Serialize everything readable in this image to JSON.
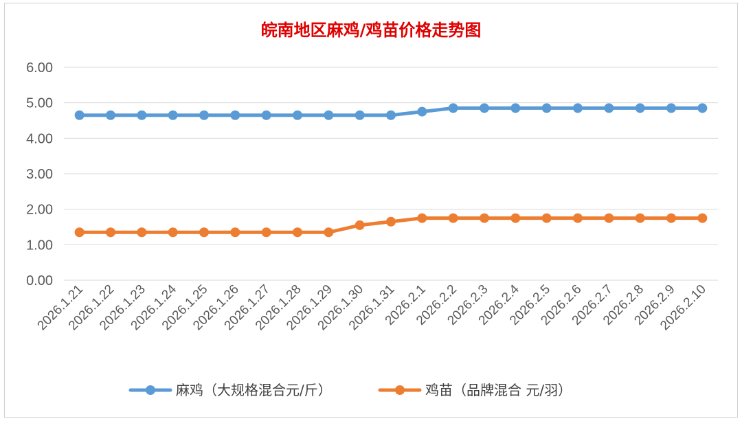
{
  "chart_data": {
    "type": "line",
    "title": "皖南地区麻鸡/鸡苗价格走势图",
    "categories": [
      "2026.1.21",
      "2026.1.22",
      "2026.1.23",
      "2026.1.24",
      "2026.1.25",
      "2026.1.26",
      "2026.1.27",
      "2026.1.28",
      "2026.1.29",
      "2026.1.30",
      "2026.1.31",
      "2026.2.1",
      "2026.2.2",
      "2026.2.3",
      "2026.2.4",
      "2026.2.5",
      "2026.2.6",
      "2026.2.7",
      "2026.2.8",
      "2026.2.9",
      "2026.2.10"
    ],
    "yticks": [
      "0.00",
      "1.00",
      "2.00",
      "3.00",
      "4.00",
      "5.00",
      "6.00"
    ],
    "ylim": [
      0,
      6
    ],
    "grid": true,
    "legend_position": "bottom",
    "series": [
      {
        "name": "麻鸡（大规格混合元/斤）",
        "color": "#5b9bd5",
        "values": [
          4.65,
          4.65,
          4.65,
          4.65,
          4.65,
          4.65,
          4.65,
          4.65,
          4.65,
          4.65,
          4.65,
          4.75,
          4.85,
          4.85,
          4.85,
          4.85,
          4.85,
          4.85,
          4.85,
          4.85,
          4.85
        ]
      },
      {
        "name": "鸡苗（品牌混合 元/羽）",
        "color": "#ed7d31",
        "values": [
          1.35,
          1.35,
          1.35,
          1.35,
          1.35,
          1.35,
          1.35,
          1.35,
          1.35,
          1.55,
          1.65,
          1.75,
          1.75,
          1.75,
          1.75,
          1.75,
          1.75,
          1.75,
          1.75,
          1.75,
          1.75
        ]
      }
    ]
  }
}
